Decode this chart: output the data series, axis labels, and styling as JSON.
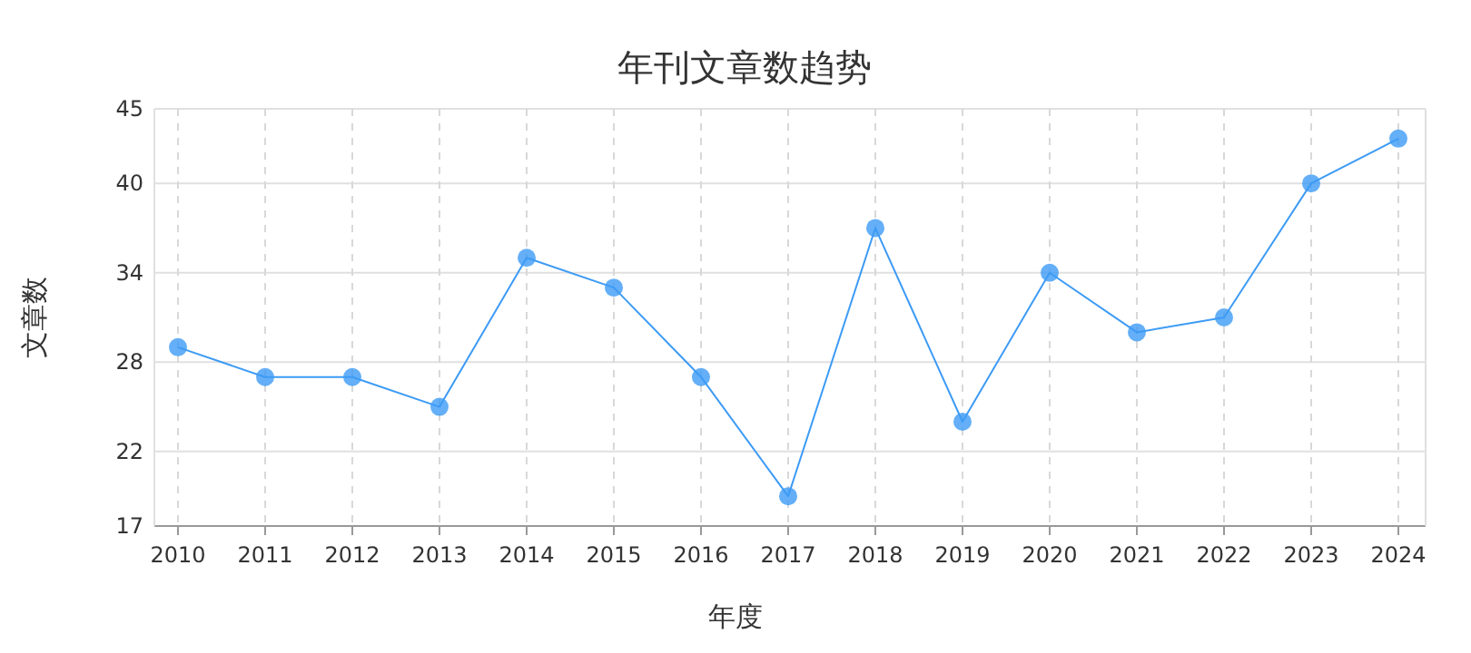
{
  "chart_data": {
    "type": "line",
    "title": "年刊文章数趋势",
    "xlabel": "年度",
    "ylabel": "文章数",
    "categories": [
      "2010",
      "2011",
      "2012",
      "2013",
      "2014",
      "2015",
      "2016",
      "2017",
      "2018",
      "2019",
      "2020",
      "2021",
      "2022",
      "2023",
      "2024"
    ],
    "series": [
      {
        "color": "#3d9bf5",
        "values": [
          29,
          27,
          27,
          25,
          35,
          33,
          27,
          19,
          37,
          24,
          34,
          30,
          31,
          40,
          43
        ]
      }
    ],
    "ylim": [
      17,
      45
    ],
    "yticks": [
      17,
      22,
      28,
      34,
      40,
      45
    ],
    "grid": true,
    "marker": "circle",
    "line_style": "solid"
  }
}
